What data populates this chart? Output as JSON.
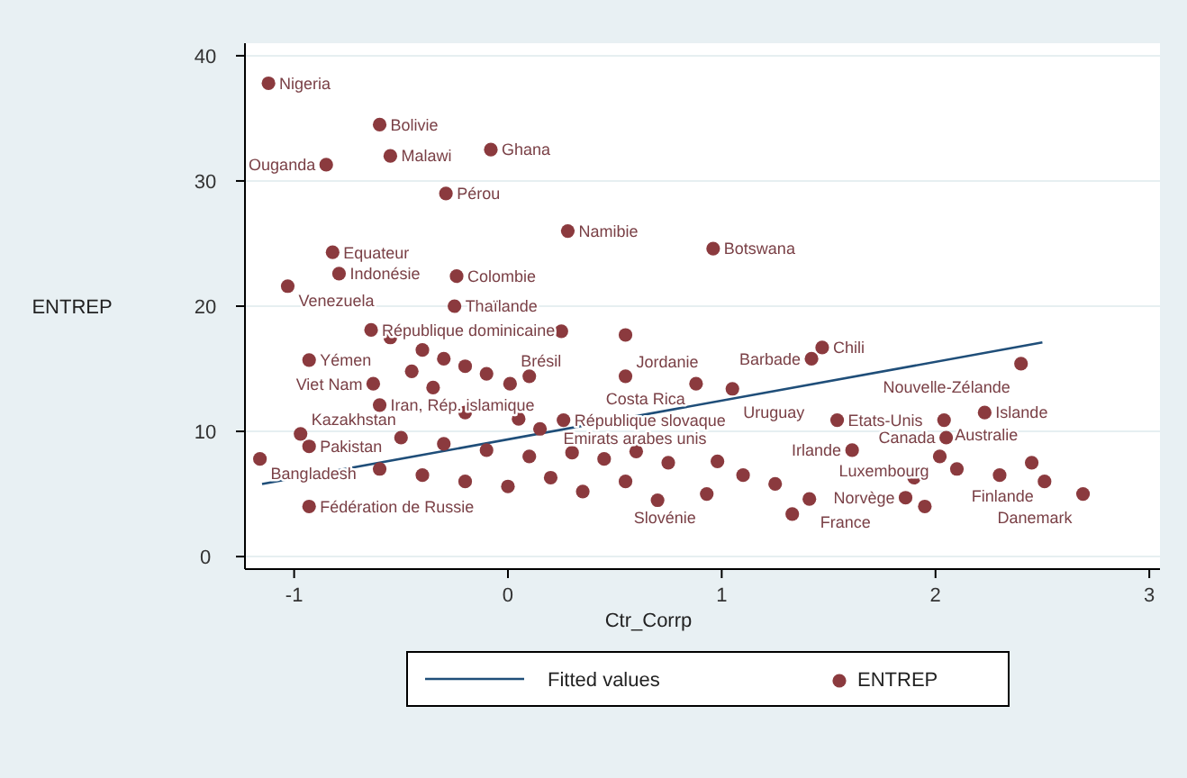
{
  "chart_data": {
    "type": "scatter",
    "xlabel": "Ctr_Corrp",
    "ylabel": "ENTREP",
    "xlim": [
      -1.23,
      3.05
    ],
    "ylim": [
      -1,
      41
    ],
    "xticks": [
      -1,
      0,
      1,
      2,
      3
    ],
    "yticks": [
      0,
      10,
      20,
      30,
      40
    ],
    "grid": "y",
    "legend": "bottom",
    "series": [
      {
        "name": "Fitted values",
        "type": "line",
        "color": "#1f4e79",
        "x": [
          -1.15,
          2.5
        ],
        "values": [
          5.8,
          17.1
        ]
      },
      {
        "name": "ENTREP",
        "marker": "circle",
        "color": "#8b3a3e",
        "x": [
          -1.12,
          -0.6,
          -0.55,
          -0.08,
          -0.85,
          -0.29,
          0.28,
          0.96,
          -0.82,
          -0.79,
          -0.24,
          -1.03,
          -0.25,
          -0.64,
          -0.93,
          -0.63,
          -0.6,
          -0.97,
          -0.93,
          -1.16,
          -0.93,
          0.26,
          0.01,
          0.55,
          0.88,
          1.05,
          1.47,
          1.42,
          2.4,
          1.54,
          2.23,
          2.04,
          2.05,
          1.61,
          0.98,
          2.02,
          2.51,
          2.69,
          1.86,
          0.93,
          1.41,
          -0.55,
          -0.4,
          -0.3,
          -0.2,
          -0.1,
          0.1,
          -0.45,
          -0.35,
          -0.2,
          0.05,
          0.15,
          -0.5,
          -0.3,
          -0.1,
          0.1,
          0.3,
          0.45,
          0.6,
          0.75,
          -0.6,
          -0.4,
          -0.2,
          0.0,
          0.2,
          0.35,
          0.55,
          0.7,
          1.1,
          1.25,
          1.9,
          2.1,
          2.3,
          2.45,
          1.95,
          1.33,
          0.55,
          0.25
        ],
        "values": [
          37.8,
          34.5,
          32.0,
          32.5,
          31.3,
          29.0,
          26.0,
          24.6,
          24.3,
          22.6,
          22.4,
          21.6,
          20.0,
          18.1,
          15.7,
          13.8,
          12.1,
          9.8,
          8.8,
          7.8,
          4.0,
          10.9,
          13.8,
          14.4,
          13.8,
          13.4,
          16.7,
          15.8,
          15.4,
          10.9,
          11.5,
          10.9,
          9.5,
          8.5,
          7.6,
          8.0,
          6.0,
          5.0,
          4.7,
          5.0,
          4.6,
          17.5,
          16.5,
          15.8,
          15.2,
          14.6,
          14.4,
          14.8,
          13.5,
          11.5,
          11.0,
          10.2,
          9.5,
          9.0,
          8.5,
          8.0,
          8.3,
          7.8,
          8.4,
          7.5,
          7.0,
          6.5,
          6.0,
          5.6,
          6.3,
          5.2,
          6.0,
          4.5,
          6.5,
          5.8,
          6.3,
          7.0,
          6.5,
          7.5,
          4.0,
          3.4,
          17.7,
          18.0
        ]
      }
    ],
    "annotations": [
      {
        "text": "Nigeria",
        "x": -1.12,
        "y": 37.8
      },
      {
        "text": "Bolivie",
        "x": -0.6,
        "y": 34.5
      },
      {
        "text": "Malawi",
        "x": -0.55,
        "y": 32.0
      },
      {
        "text": "Ghana",
        "x": -0.08,
        "y": 32.5
      },
      {
        "text": "Ouganda",
        "x": -0.85,
        "y": 31.3
      },
      {
        "text": "Pérou",
        "x": -0.29,
        "y": 29.0
      },
      {
        "text": "Namibie",
        "x": 0.28,
        "y": 26.0
      },
      {
        "text": "Botswana",
        "x": 0.96,
        "y": 24.6
      },
      {
        "text": "Equateur",
        "x": -0.82,
        "y": 24.3
      },
      {
        "text": "Indonésie",
        "x": -0.79,
        "y": 22.6
      },
      {
        "text": "Colombie",
        "x": -0.24,
        "y": 22.4
      },
      {
        "text": "Venezuela",
        "x": -1.03,
        "y": 21.6
      },
      {
        "text": "Thaïlande",
        "x": -0.25,
        "y": 20.0
      },
      {
        "text": "République dominicaine",
        "x": -0.64,
        "y": 18.1
      },
      {
        "text": "Yémen",
        "x": -0.93,
        "y": 15.7
      },
      {
        "text": "Viet Nam",
        "x": -0.63,
        "y": 13.8
      },
      {
        "text": "Iran, Rép. islamique",
        "x": -0.6,
        "y": 12.1
      },
      {
        "text": "Kazakhstan",
        "x": -0.97,
        "y": 9.8
      },
      {
        "text": "Pakistan",
        "x": -0.93,
        "y": 8.8
      },
      {
        "text": "Bangladesh",
        "x": -1.16,
        "y": 7.8
      },
      {
        "text": "Fédération de Russie",
        "x": -0.93,
        "y": 4.0
      },
      {
        "text": "République slovaque",
        "x": 0.26,
        "y": 10.9
      },
      {
        "text": "Brésil",
        "x": 0.01,
        "y": 13.8
      },
      {
        "text": "Jordanie",
        "x": 0.55,
        "y": 14.4
      },
      {
        "text": "Costa Rica",
        "x": 0.88,
        "y": 13.8
      },
      {
        "text": "Uruguay",
        "x": 1.05,
        "y": 13.4
      },
      {
        "text": "Chili",
        "x": 1.47,
        "y": 16.7
      },
      {
        "text": "Barbade",
        "x": 1.42,
        "y": 15.8
      },
      {
        "text": "Nouvelle-Zélande",
        "x": 2.4,
        "y": 15.4
      },
      {
        "text": "Etats-Unis",
        "x": 1.54,
        "y": 10.9
      },
      {
        "text": "Islande",
        "x": 2.23,
        "y": 11.5
      },
      {
        "text": "Australie",
        "x": 2.04,
        "y": 10.9
      },
      {
        "text": "Canada",
        "x": 2.05,
        "y": 9.5
      },
      {
        "text": "Irlande",
        "x": 1.61,
        "y": 8.5
      },
      {
        "text": "Emirats arabes unis",
        "x": 0.98,
        "y": 7.6
      },
      {
        "text": "Luxembourg",
        "x": 2.02,
        "y": 8.0
      },
      {
        "text": "Finlande",
        "x": 2.51,
        "y": 6.0
      },
      {
        "text": "Danemark",
        "x": 2.69,
        "y": 5.0
      },
      {
        "text": "Norvège",
        "x": 1.86,
        "y": 4.7
      },
      {
        "text": "Slovénie",
        "x": 0.93,
        "y": 5.0
      },
      {
        "text": "France",
        "x": 1.41,
        "y": 4.6
      }
    ]
  }
}
